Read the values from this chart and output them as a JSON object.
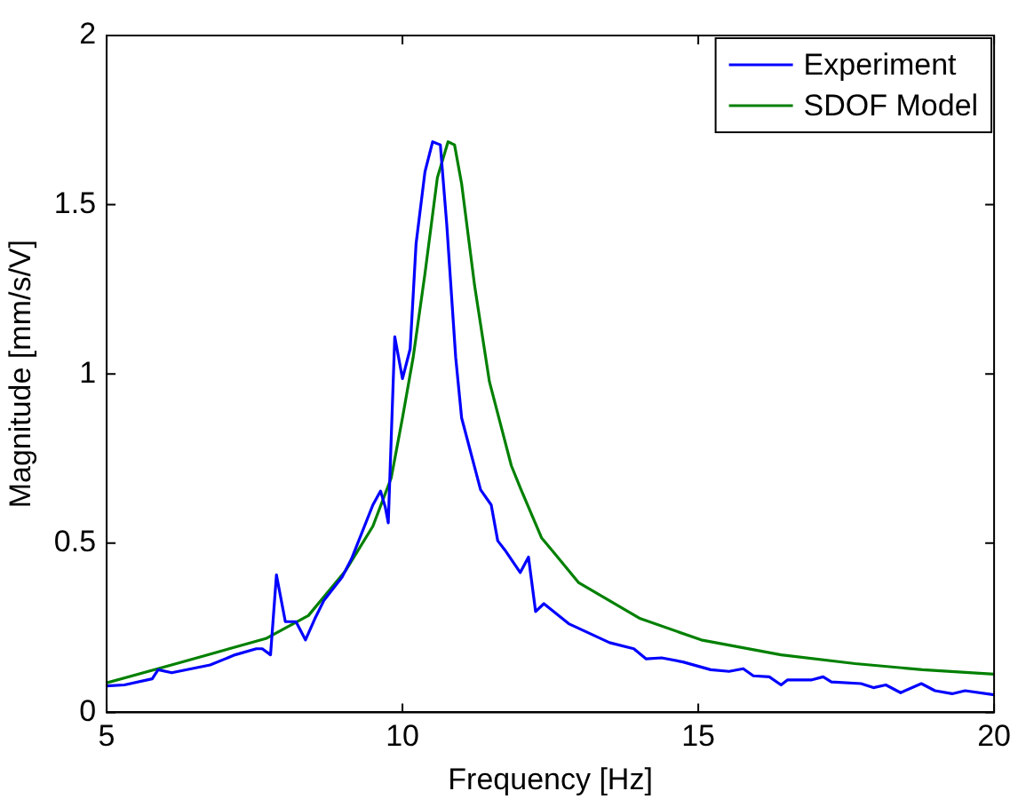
{
  "chart_data": {
    "type": "line",
    "xlabel": "Frequency [Hz]",
    "ylabel": "Magnitude [mm/s/V]",
    "xlim": [
      5,
      20
    ],
    "ylim": [
      0,
      2
    ],
    "xticks": [
      5,
      10,
      15,
      20
    ],
    "yticks": [
      0,
      0.5,
      1,
      1.5,
      2
    ],
    "grid": false,
    "legend": "top right",
    "marker": "none",
    "line_style": "solid",
    "series": [
      {
        "name": "Experiment",
        "color": "#0000ff",
        "x": [
          5.0,
          5.3,
          5.77,
          5.87,
          6.1,
          6.75,
          7.17,
          7.53,
          7.63,
          7.77,
          7.87,
          8.02,
          8.2,
          8.36,
          8.52,
          8.67,
          8.98,
          9.14,
          9.5,
          9.63,
          9.71,
          9.76,
          9.87,
          10.0,
          10.13,
          10.23,
          10.38,
          10.51,
          10.64,
          10.75,
          10.9,
          11.0,
          11.32,
          11.5,
          11.61,
          11.73,
          11.99,
          12.13,
          12.25,
          12.39,
          12.82,
          13.5,
          13.91,
          14.12,
          14.38,
          14.74,
          15.21,
          15.52,
          15.76,
          15.93,
          16.2,
          16.4,
          16.51,
          16.92,
          17.11,
          17.25,
          17.75,
          17.96,
          18.17,
          18.42,
          18.77,
          19.0,
          19.29,
          19.51,
          20.0
        ],
        "values": [
          0.078,
          0.081,
          0.099,
          0.126,
          0.117,
          0.14,
          0.17,
          0.188,
          0.188,
          0.17,
          0.406,
          0.268,
          0.268,
          0.214,
          0.277,
          0.33,
          0.4,
          0.454,
          0.613,
          0.654,
          0.606,
          0.56,
          1.11,
          0.986,
          1.074,
          1.385,
          1.597,
          1.686,
          1.677,
          1.438,
          1.048,
          0.87,
          0.658,
          0.613,
          0.507,
          0.48,
          0.413,
          0.459,
          0.298,
          0.321,
          0.261,
          0.206,
          0.188,
          0.158,
          0.161,
          0.149,
          0.126,
          0.121,
          0.129,
          0.108,
          0.105,
          0.081,
          0.096,
          0.096,
          0.105,
          0.09,
          0.085,
          0.073,
          0.081,
          0.058,
          0.085,
          0.064,
          0.055,
          0.064,
          0.052
        ]
      },
      {
        "name": "SDOF Model",
        "color": "#008000",
        "x": [
          5.0,
          6.34,
          7.69,
          8.41,
          9.04,
          9.5,
          9.81,
          10.0,
          10.18,
          10.38,
          10.59,
          10.77,
          10.88,
          11.0,
          11.22,
          11.47,
          11.84,
          12.0,
          12.35,
          12.56,
          12.98,
          13.5,
          14.02,
          15.05,
          16.4,
          17.65,
          18.79,
          20.0
        ],
        "values": [
          0.087,
          0.152,
          0.218,
          0.286,
          0.419,
          0.55,
          0.693,
          0.87,
          1.048,
          1.296,
          1.58,
          1.686,
          1.677,
          1.562,
          1.26,
          0.977,
          0.729,
          0.66,
          0.516,
          0.472,
          0.383,
          0.33,
          0.277,
          0.214,
          0.17,
          0.144,
          0.126,
          0.113
        ]
      }
    ]
  }
}
